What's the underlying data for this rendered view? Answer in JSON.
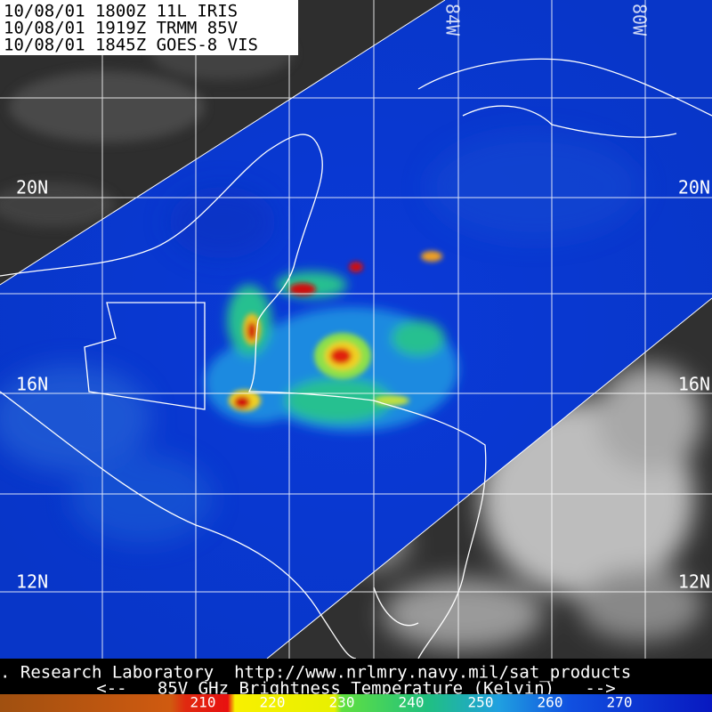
{
  "header": {
    "lines": [
      "10/08/01 1800Z  11L IRIS",
      "10/08/01 1919Z  TRMM 85V",
      "10/08/01 1845Z  GOES-8 VIS"
    ]
  },
  "map": {
    "lon_labels": [
      "84W",
      "80W"
    ],
    "lat_labels": [
      "20N",
      "16N",
      "12N"
    ]
  },
  "footer": {
    "credit": ". Research Laboratory  http://www.nrlmry.navy.mil/sat_products",
    "caption": "<--   85V GHz Brightness Temperature (Kelvin)   -->"
  },
  "colorbar": {
    "labels": [
      210,
      220,
      230,
      240,
      250,
      260,
      270
    ]
  }
}
